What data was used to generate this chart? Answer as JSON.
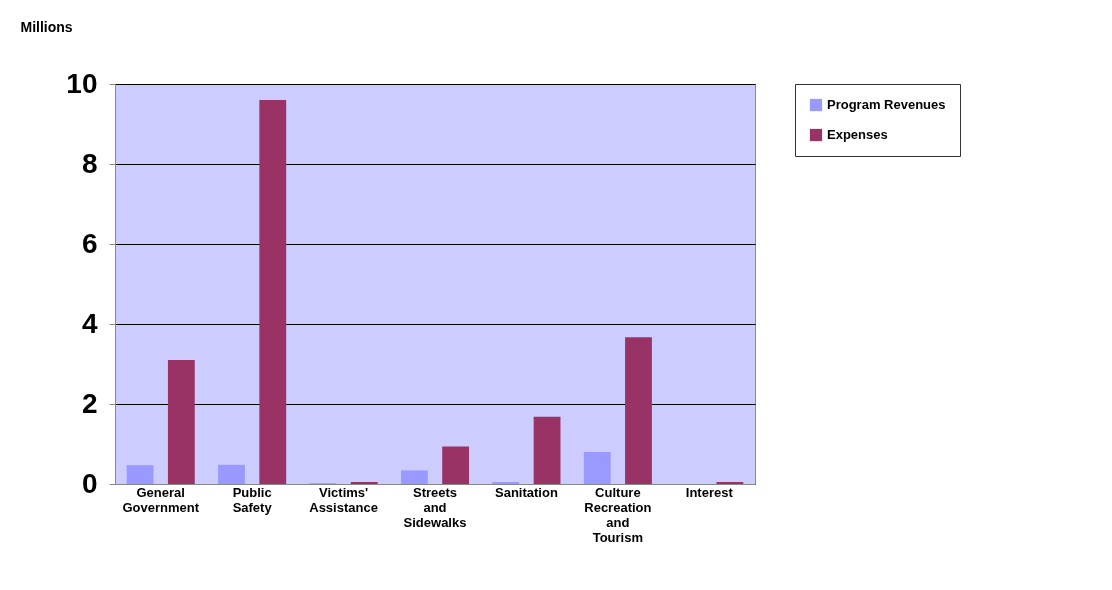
{
  "chart_data": {
    "type": "bar",
    "ylabel": "Millions",
    "categories": [
      "General Government",
      "Public Safety",
      "Victims' Assistance",
      "Streets and Sidewalks",
      "Sanitation",
      "Culture  Recreation and Tourism",
      "Interest"
    ],
    "series": [
      {
        "name": "Program Revenues",
        "color": "#9999ff",
        "values": [
          0.47,
          0.48,
          0.02,
          0.34,
          0.05,
          0.8,
          0
        ]
      },
      {
        "name": "Expenses",
        "color": "#993366",
        "values": [
          3.1,
          9.6,
          0.05,
          0.94,
          1.68,
          3.67,
          0.05
        ]
      }
    ],
    "ylim": [
      0,
      10
    ],
    "yticks": [
      0,
      2,
      4,
      6,
      8,
      10
    ],
    "grid": "y",
    "legend": "right"
  }
}
